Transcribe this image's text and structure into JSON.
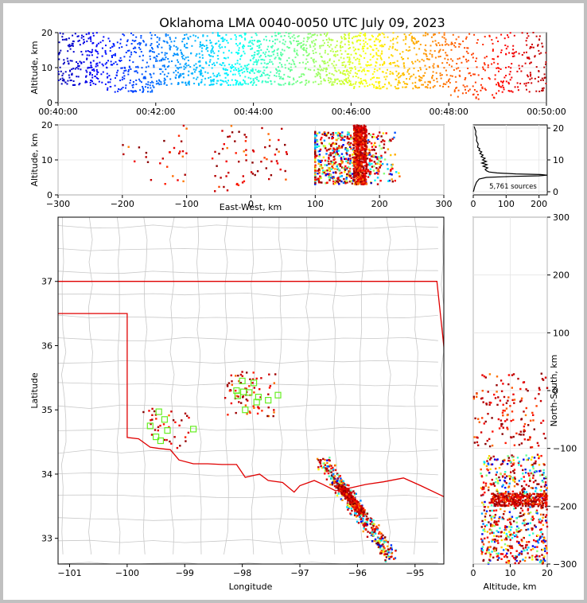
{
  "title": "Oklahoma LMA 0040-0050 UTC July 09, 2023",
  "sources_label": "5,761 sources",
  "chart_data": [
    {
      "id": "time_height",
      "type": "scatter",
      "ylabel": "Altitude, km",
      "x_ticks": [
        "00:40:00",
        "00:42:00",
        "00:44:00",
        "00:46:00",
        "00:48:00",
        "00:50:00"
      ],
      "xlim_minutes": [
        40,
        50
      ],
      "ylim": [
        0,
        20
      ],
      "y_ticks": [
        0,
        10,
        20
      ],
      "color_by": "time",
      "activity_by_minute": [
        {
          "t0": 40.0,
          "t1": 41.0,
          "points": 200,
          "alt": [
            5,
            20
          ]
        },
        {
          "t0": 41.0,
          "t1": 42.0,
          "points": 200,
          "alt": [
            3,
            20
          ]
        },
        {
          "t0": 42.0,
          "t1": 43.0,
          "points": 220,
          "alt": [
            5,
            20
          ]
        },
        {
          "t0": 43.0,
          "t1": 44.0,
          "points": 240,
          "alt": [
            5,
            20
          ]
        },
        {
          "t0": 44.0,
          "t1": 45.0,
          "points": 240,
          "alt": [
            5,
            20
          ]
        },
        {
          "t0": 45.0,
          "t1": 46.0,
          "points": 260,
          "alt": [
            5,
            20
          ]
        },
        {
          "t0": 46.0,
          "t1": 47.0,
          "points": 240,
          "alt": [
            4,
            20
          ]
        },
        {
          "t0": 47.0,
          "t1": 48.0,
          "points": 200,
          "alt": [
            4,
            20
          ]
        },
        {
          "t0": 48.0,
          "t1": 49.0,
          "points": 130,
          "alt": [
            1,
            20
          ]
        },
        {
          "t0": 49.0,
          "t1": 50.0,
          "points": 150,
          "alt": [
            3,
            20
          ]
        }
      ]
    },
    {
      "id": "ew_height",
      "type": "scatter",
      "xlabel": "East-West, km",
      "ylabel": "Altitude, km",
      "xlim": [
        -300,
        300
      ],
      "x_ticks": [
        -300,
        -200,
        -100,
        0,
        100,
        200,
        300
      ],
      "ylim": [
        0,
        20
      ],
      "y_ticks": [
        0,
        10,
        20
      ],
      "clusters": [
        {
          "x": [
            -200,
            -100
          ],
          "alt": [
            3,
            20
          ],
          "n": 30,
          "colors": "red"
        },
        {
          "x": [
            -60,
            60
          ],
          "alt": [
            1,
            20
          ],
          "n": 70,
          "colors": "red"
        },
        {
          "x": [
            100,
            260
          ],
          "alt": [
            2,
            20
          ],
          "n": 650,
          "colors": "mixed"
        },
        {
          "x": [
            160,
            180
          ],
          "alt": [
            3,
            20
          ],
          "n": 500,
          "colors": "red"
        }
      ]
    },
    {
      "id": "alt_histogram",
      "type": "line",
      "xlim": [
        0,
        225
      ],
      "x_ticks": [
        0,
        100,
        200
      ],
      "ylim": [
        -1,
        21
      ],
      "y_ticks": [
        0,
        10,
        20
      ],
      "profile": [
        [
          0,
          0
        ],
        [
          2,
          0.5
        ],
        [
          3,
          1
        ],
        [
          4,
          1.5
        ],
        [
          6,
          2
        ],
        [
          8,
          2.5
        ],
        [
          10,
          3
        ],
        [
          14,
          3.5
        ],
        [
          18,
          4
        ],
        [
          40,
          4.5
        ],
        [
          115,
          4.8
        ],
        [
          200,
          5
        ],
        [
          225,
          5.2
        ],
        [
          205,
          5.4
        ],
        [
          130,
          5.6
        ],
        [
          72,
          5.9
        ],
        [
          48,
          6.2
        ],
        [
          40,
          6.6
        ],
        [
          36,
          7
        ],
        [
          44,
          7.5
        ],
        [
          30,
          8
        ],
        [
          42,
          8.5
        ],
        [
          26,
          9
        ],
        [
          40,
          9.5
        ],
        [
          28,
          10
        ],
        [
          36,
          10.5
        ],
        [
          24,
          11
        ],
        [
          30,
          11.5
        ],
        [
          20,
          12
        ],
        [
          26,
          12.5
        ],
        [
          17,
          13
        ],
        [
          20,
          13.5
        ],
        [
          13,
          14
        ],
        [
          15,
          15
        ],
        [
          10,
          16
        ],
        [
          11,
          17
        ],
        [
          7,
          18
        ],
        [
          8,
          19
        ],
        [
          4,
          20
        ],
        [
          3,
          20.5
        ]
      ]
    },
    {
      "id": "plan_view",
      "type": "scatter",
      "xlabel": "Longitude",
      "ylabel": "Latitude",
      "xlim": [
        -101.2,
        -94.5
      ],
      "ylim": [
        32.6,
        38.0
      ],
      "x_ticks": [
        -101,
        -100,
        -99,
        -98,
        -97,
        -96,
        -95
      ],
      "y_ticks": [
        33,
        34,
        35,
        36,
        37
      ],
      "clusters": [
        {
          "lon": [
            -98.3,
            -97.4
          ],
          "lat": [
            34.9,
            35.6
          ],
          "n": 70,
          "colors": "red"
        },
        {
          "lon": [
            -99.6,
            -98.9
          ],
          "lat": [
            34.4,
            35.0
          ],
          "n": 30,
          "colors": "red"
        },
        {
          "lon": [
            -100.0,
            -99.5
          ],
          "lat": [
            34.9,
            35.1
          ],
          "n": 6,
          "colors": "red"
        },
        {
          "axis": [
            [
              -96.6,
              34.2
            ],
            [
              -95.4,
              32.7
            ]
          ],
          "width": 0.12,
          "n": 400,
          "colors": "mixed"
        },
        {
          "axis": [
            [
              -96.3,
              33.8
            ],
            [
              -95.9,
              33.4
            ]
          ],
          "width": 0.06,
          "n": 300,
          "colors": "red"
        }
      ],
      "stations": [
        [
          -98.0,
          35.45
        ],
        [
          -97.8,
          35.42
        ],
        [
          -98.08,
          35.22
        ],
        [
          -97.98,
          35.28
        ],
        [
          -97.88,
          35.27
        ],
        [
          -97.72,
          35.2
        ],
        [
          -97.55,
          35.15
        ],
        [
          -97.38,
          35.23
        ],
        [
          -98.1,
          35.3
        ],
        [
          -97.75,
          35.12
        ],
        [
          -97.95,
          35.0
        ],
        [
          -99.45,
          34.97
        ],
        [
          -99.35,
          34.85
        ],
        [
          -99.6,
          34.75
        ],
        [
          -99.3,
          34.68
        ],
        [
          -99.5,
          34.58
        ],
        [
          -99.42,
          34.52
        ],
        [
          -98.85,
          34.7
        ]
      ],
      "oklahoma_border": [
        [
          -103.0,
          37.0
        ],
        [
          -94.62,
          37.0
        ],
        [
          -94.43,
          35.4
        ],
        [
          -94.48,
          33.64
        ],
        [
          -94.9,
          33.82
        ],
        [
          -95.2,
          33.94
        ],
        [
          -95.55,
          33.88
        ],
        [
          -95.85,
          33.84
        ],
        [
          -96.15,
          33.78
        ],
        [
          -96.38,
          33.74
        ],
        [
          -96.6,
          33.84
        ],
        [
          -96.75,
          33.9
        ],
        [
          -97.0,
          33.82
        ],
        [
          -97.1,
          33.72
        ],
        [
          -97.3,
          33.87
        ],
        [
          -97.55,
          33.9
        ],
        [
          -97.7,
          34.0
        ],
        [
          -97.95,
          33.95
        ],
        [
          -98.1,
          34.15
        ],
        [
          -98.35,
          34.15
        ],
        [
          -98.6,
          34.16
        ],
        [
          -98.85,
          34.16
        ],
        [
          -99.1,
          34.22
        ],
        [
          -99.25,
          34.38
        ],
        [
          -99.45,
          34.4
        ],
        [
          -99.6,
          34.42
        ],
        [
          -99.8,
          34.55
        ],
        [
          -100.0,
          34.57
        ],
        [
          -100.0,
          36.5
        ],
        [
          -103.0,
          36.5
        ]
      ]
    },
    {
      "id": "alt_ns",
      "type": "scatter",
      "xlabel": "Altitude, km",
      "ylabel": "North-South, km",
      "xlim": [
        0,
        20
      ],
      "x_ticks": [
        0,
        10,
        20
      ],
      "ylim": [
        -300,
        300
      ],
      "y_ticks": [
        -300,
        -200,
        -100,
        0,
        100,
        200,
        300
      ],
      "clusters": [
        {
          "alt": [
            0,
            20
          ],
          "ns": [
            -100,
            30
          ],
          "n": 150,
          "colors": "red"
        },
        {
          "alt": [
            2,
            20
          ],
          "ns": [
            -300,
            -110
          ],
          "n": 650,
          "colors": "mixed"
        },
        {
          "alt": [
            5,
            20
          ],
          "ns": [
            -200,
            -178
          ],
          "n": 300,
          "colors": "red"
        }
      ]
    }
  ]
}
